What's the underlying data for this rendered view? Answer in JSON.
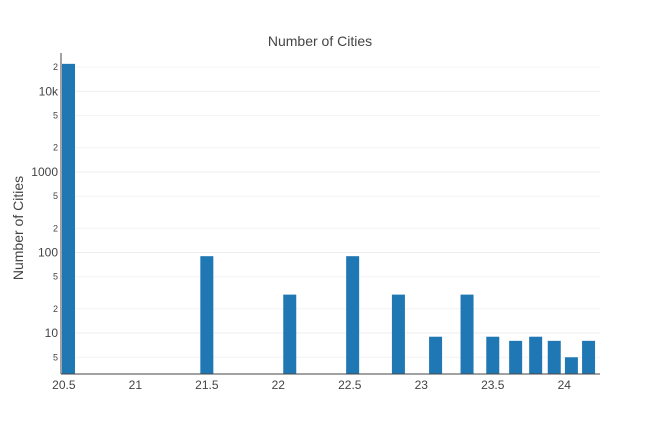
{
  "chart_data": {
    "type": "bar",
    "title": "Number of Cities",
    "xlabel": "",
    "ylabel": "Number of Cities",
    "y_scale": "log",
    "ylim": [
      3.1,
      30000
    ],
    "xlim": [
      20.48,
      24.25
    ],
    "grid": "horizontal",
    "x_ticks": [
      "20.5",
      "21",
      "21.5",
      "22",
      "22.5",
      "23",
      "23.5",
      "24"
    ],
    "y_major_ticks": [
      "10",
      "100",
      "1000",
      "10k"
    ],
    "y_minor_ticks": [
      "5",
      "2",
      "5",
      "2",
      "5",
      "2",
      "5",
      "2",
      "5",
      "2"
    ],
    "bar_color": "#1f77b4",
    "x": [
      20.5,
      21.5,
      22.08,
      22.52,
      22.84,
      23.1,
      23.32,
      23.5,
      23.66,
      23.8,
      23.93,
      24.05,
      24.17
    ],
    "values": [
      22000,
      90,
      30,
      90,
      30,
      9,
      30,
      9,
      8,
      9,
      8,
      5,
      8
    ]
  }
}
